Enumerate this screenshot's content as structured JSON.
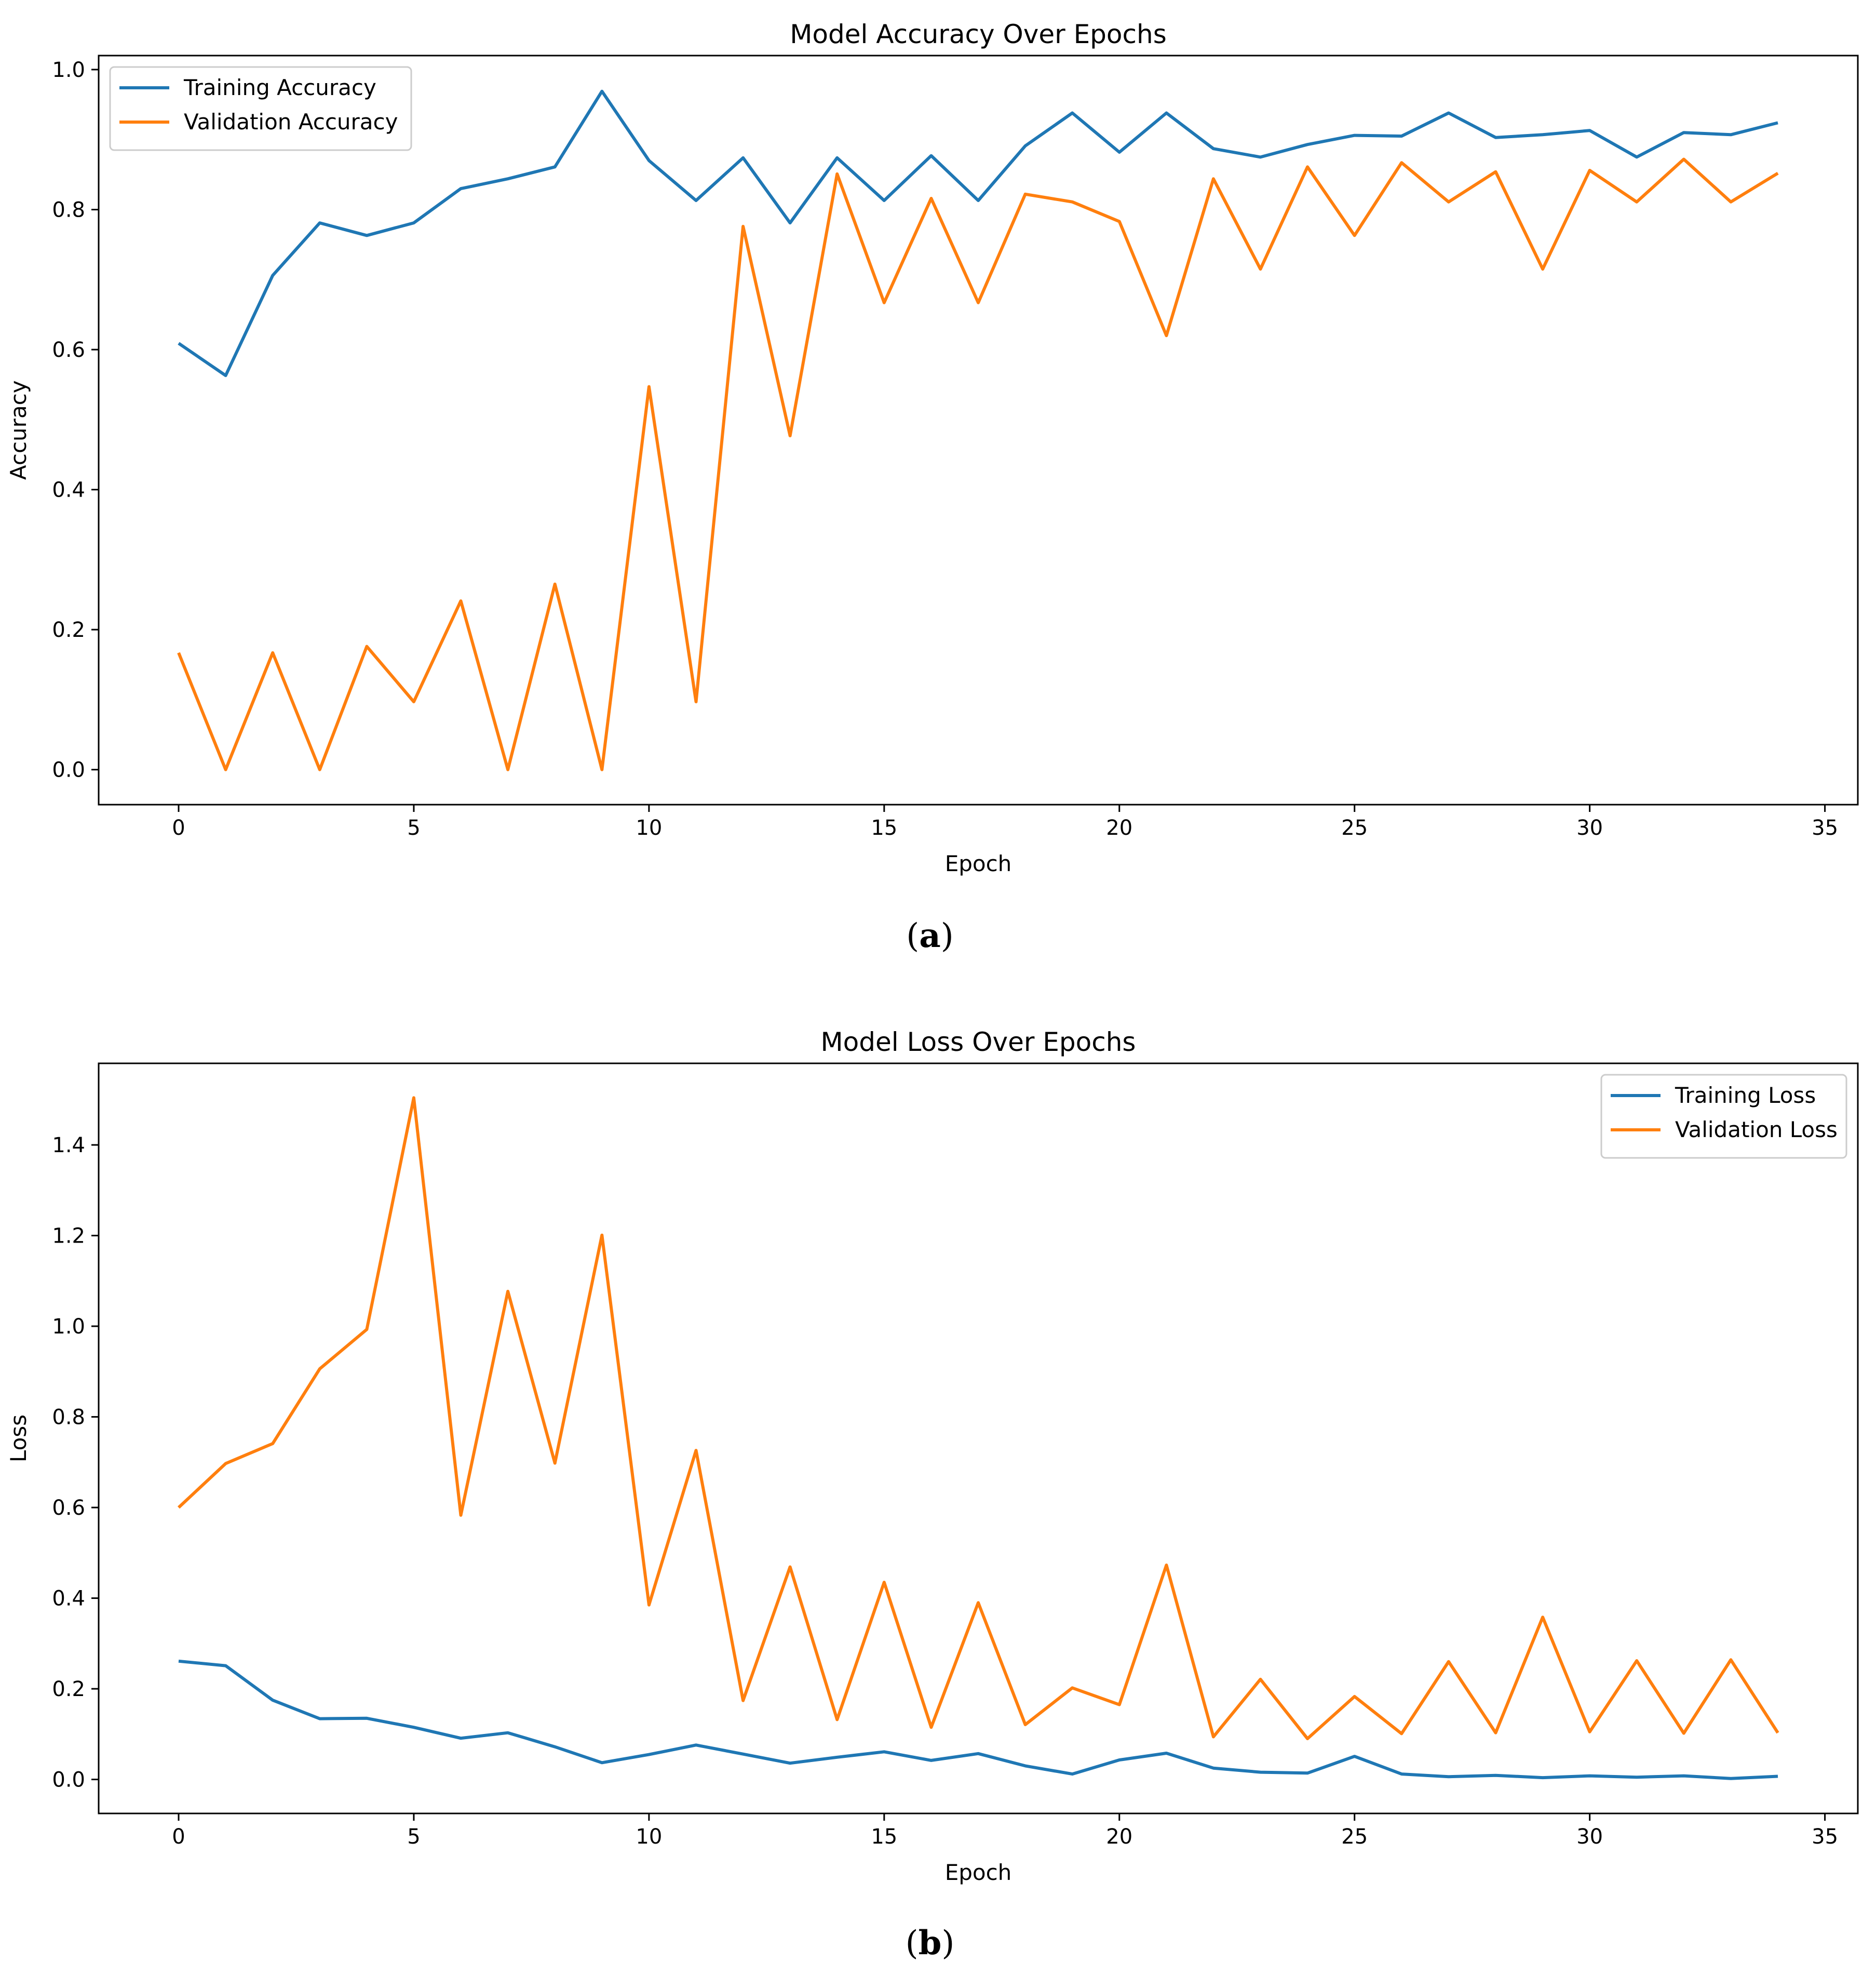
{
  "panel_a_label": "a",
  "panel_b_label": "b",
  "chart_data": [
    {
      "type": "line",
      "title": "Model Accuracy Over Epochs",
      "xlabel": "Epoch",
      "ylabel": "Accuracy",
      "xlim": [
        -1.7,
        35.7
      ],
      "ylim": [
        -0.05,
        1.02
      ],
      "xticks": [
        0,
        5,
        10,
        15,
        20,
        25,
        30,
        35
      ],
      "yticks": [
        0.0,
        0.2,
        0.4,
        0.6,
        0.8,
        1.0
      ],
      "xtick_labels": [
        "0",
        "5",
        "10",
        "15",
        "20",
        "25",
        "30",
        "35"
      ],
      "ytick_labels": [
        "0.0",
        "0.2",
        "0.4",
        "0.6",
        "0.8",
        "1.0"
      ],
      "legend_position": "upper-left",
      "grid": false,
      "x": [
        0,
        1,
        2,
        3,
        4,
        5,
        6,
        7,
        8,
        9,
        10,
        11,
        12,
        13,
        14,
        15,
        16,
        17,
        18,
        19,
        20,
        21,
        22,
        23,
        24,
        25,
        26,
        27,
        28,
        29,
        30,
        31,
        32,
        33,
        34
      ],
      "series": [
        {
          "name": "Training Accuracy",
          "color": "#1f77b4",
          "values": [
            0.609,
            0.563,
            0.706,
            0.781,
            0.763,
            0.781,
            0.83,
            0.844,
            0.861,
            0.969,
            0.87,
            0.813,
            0.874,
            0.781,
            0.874,
            0.813,
            0.877,
            0.813,
            0.891,
            0.938,
            0.882,
            0.938,
            0.887,
            0.875,
            0.893,
            0.906,
            0.905,
            0.938,
            0.903,
            0.907,
            0.913,
            0.875,
            0.91,
            0.907,
            0.924
          ]
        },
        {
          "name": "Validation Accuracy",
          "color": "#ff7f0e",
          "values": [
            0.167,
            0.0,
            0.167,
            0.0,
            0.176,
            0.097,
            0.241,
            0.0,
            0.265,
            0.0,
            0.547,
            0.097,
            0.776,
            0.477,
            0.851,
            0.667,
            0.816,
            0.667,
            0.822,
            0.811,
            0.783,
            0.62,
            0.844,
            0.715,
            0.861,
            0.763,
            0.867,
            0.811,
            0.854,
            0.715,
            0.856,
            0.811,
            0.872,
            0.811,
            0.852
          ]
        }
      ]
    },
    {
      "type": "line",
      "title": "Model Loss Over Epochs",
      "xlabel": "Epoch",
      "ylabel": "Loss",
      "xlim": [
        -1.7,
        35.7
      ],
      "ylim": [
        -0.075,
        1.58
      ],
      "xticks": [
        0,
        5,
        10,
        15,
        20,
        25,
        30,
        35
      ],
      "yticks": [
        0.0,
        0.2,
        0.4,
        0.6,
        0.8,
        1.0,
        1.2,
        1.4
      ],
      "xtick_labels": [
        "0",
        "5",
        "10",
        "15",
        "20",
        "25",
        "30",
        "35"
      ],
      "ytick_labels": [
        "0.0",
        "0.2",
        "0.4",
        "0.6",
        "0.8",
        "1.0",
        "1.2",
        "1.4"
      ],
      "legend_position": "upper-right",
      "grid": false,
      "x": [
        0,
        1,
        2,
        3,
        4,
        5,
        6,
        7,
        8,
        9,
        10,
        11,
        12,
        13,
        14,
        15,
        16,
        17,
        18,
        19,
        20,
        21,
        22,
        23,
        24,
        25,
        26,
        27,
        28,
        29,
        30,
        31,
        32,
        33,
        34
      ],
      "series": [
        {
          "name": "Training Loss",
          "color": "#1f77b4",
          "values": [
            0.261,
            0.251,
            0.175,
            0.134,
            0.135,
            0.115,
            0.091,
            0.103,
            0.072,
            0.037,
            0.055,
            0.076,
            0.056,
            0.036,
            0.049,
            0.061,
            0.042,
            0.057,
            0.03,
            0.012,
            0.043,
            0.058,
            0.025,
            0.016,
            0.014,
            0.051,
            0.012,
            0.006,
            0.009,
            0.004,
            0.008,
            0.005,
            0.008,
            0.002,
            0.007
          ]
        },
        {
          "name": "Validation Loss",
          "color": "#ff7f0e",
          "values": [
            0.6,
            0.697,
            0.741,
            0.906,
            0.993,
            1.504,
            0.583,
            1.077,
            0.698,
            1.201,
            0.385,
            0.726,
            0.174,
            0.469,
            0.132,
            0.435,
            0.115,
            0.39,
            0.121,
            0.202,
            0.165,
            0.473,
            0.094,
            0.221,
            0.09,
            0.183,
            0.101,
            0.26,
            0.103,
            0.358,
            0.105,
            0.262,
            0.102,
            0.264,
            0.103
          ]
        }
      ]
    }
  ]
}
